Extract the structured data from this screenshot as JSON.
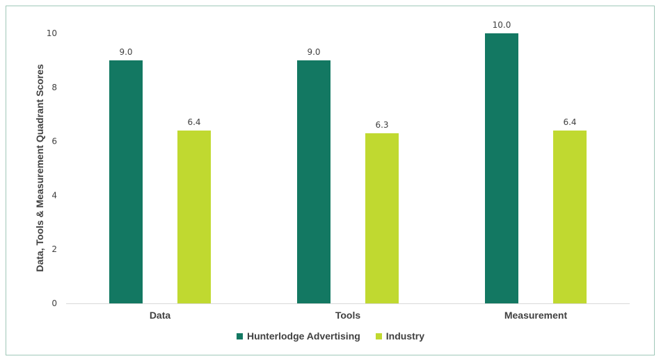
{
  "chart_data": {
    "type": "bar",
    "categories": [
      "Data",
      "Tools",
      "Measurement"
    ],
    "series": [
      {
        "name": "Hunterlodge Advertising",
        "values": [
          9.0,
          9.0,
          10.0
        ],
        "color": "#137862",
        "labels": [
          "9.0",
          "9.0",
          "10.0"
        ]
      },
      {
        "name": "Industry",
        "values": [
          6.4,
          6.3,
          6.4
        ],
        "color": "#c0d930",
        "labels": [
          "6.4",
          "6.3",
          "6.4"
        ]
      }
    ],
    "ylabel": "Data, Tools & Measurement Quadrant Scores",
    "xlabel": "",
    "ylim": [
      0,
      10
    ],
    "yticks": [
      0,
      2,
      4,
      6,
      8,
      10
    ],
    "ytick_labels": [
      "0",
      "2",
      "4",
      "6",
      "8",
      "10"
    ],
    "grid": false,
    "legend": "bottom",
    "axis_color": "#d9d9d9",
    "border_color": "#9fc7b8"
  }
}
